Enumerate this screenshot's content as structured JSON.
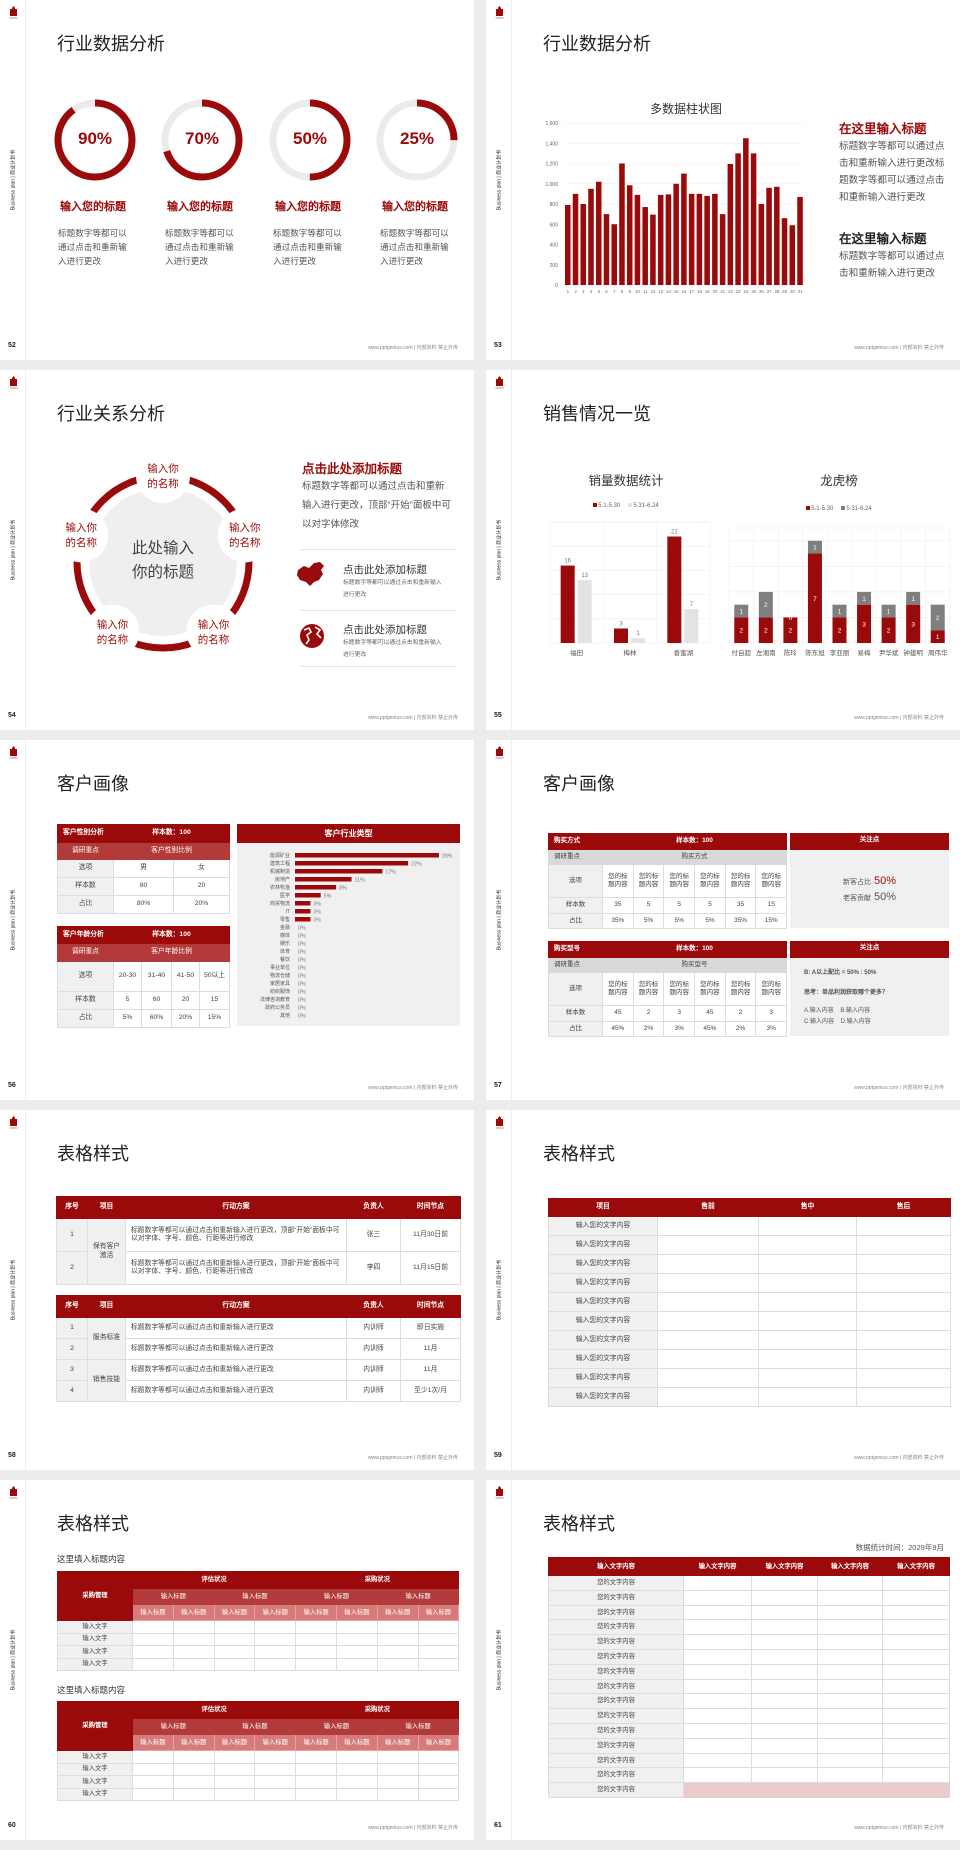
{
  "common": {
    "sidebar": "Business plan | 商业计划书",
    "footer": "www.pptgenius.com | 内部资料 禁止外传",
    "logo_icon": "red-building-logo"
  },
  "colors": {
    "accent": "#9b0a0a",
    "accent_mid": "#b33a3a",
    "accent_light": "#d67a7a",
    "gray_bar": "#e3e3e3",
    "dark_gray_bar": "#7f7f7f",
    "panel": "#f0f0f0"
  },
  "s52": {
    "page": "52",
    "title": "行业数据分析",
    "items": [
      {
        "percent": 90,
        "label": "90%",
        "heading": "输入您的标题",
        "text": "标题数字等都可以通过点击和重新输入进行更改"
      },
      {
        "percent": 70,
        "label": "70%",
        "heading": "输入您的标题",
        "text": "标题数字等都可以通过点击和重新输入进行更改"
      },
      {
        "percent": 50,
        "label": "50%",
        "heading": "输入您的标题",
        "text": "标题数字等都可以通过点击和重新输入进行更改"
      },
      {
        "percent": 25,
        "label": "25%",
        "heading": "输入您的标题",
        "text": "标题数字等都可以通过点击和重新输入进行更改"
      }
    ]
  },
  "s53": {
    "page": "53",
    "title": "行业数据分析",
    "blocks": [
      {
        "heading": "在这里输入标题",
        "text": "标题数字等都可以通过点击和重新输入进行更改标题数字等都可以通过点击和重新输入进行更改"
      },
      {
        "heading": "在这里输入标题",
        "text": "标题数字等都可以通过点击和重新输入进行更改"
      }
    ]
  },
  "s54": {
    "page": "54",
    "title": "行业关系分析",
    "center": "此处输入你的标题",
    "nodes": [
      "输入你的名称",
      "输入你的名称",
      "输入你的名称",
      "输入你的名称",
      "输入你的名称"
    ],
    "heading": "点击此处添加标题",
    "text": "标题数字等都可以通过点击和重新输入进行更改，顶部“开始”面板中可以对字体修改",
    "items": [
      {
        "icon": "china-map-icon",
        "title": "点击此处添加标题",
        "text": "标题数字等都可以通过点击和重新输入进行更改"
      },
      {
        "icon": "globe-icon",
        "title": "点击此处添加标题",
        "text": "标题数字等都可以通过点击和重新输入进行更改"
      }
    ]
  },
  "s55": {
    "page": "55",
    "title": "销售情况一览"
  },
  "s56": {
    "page": "56",
    "title": "客户画像",
    "t1": {
      "rows": [
        [
          "客户性别分析",
          "样本数：100"
        ],
        [
          "调研重点",
          "客户性别比例"
        ],
        [
          "选项",
          "男",
          "女"
        ],
        [
          "样本数",
          "80",
          "20"
        ],
        [
          "占比",
          "80%",
          "20%"
        ]
      ]
    },
    "t2": {
      "rows": [
        [
          "客户年龄分析",
          "样本数：100"
        ],
        [
          "调研重点",
          "客户年龄比例"
        ],
        [
          "选项",
          "20-30",
          "31-40",
          "41-50",
          "50以上"
        ],
        [
          "样本数",
          "5",
          "60",
          "20",
          "15"
        ],
        [
          "占比",
          "5%",
          "60%",
          "20%",
          "15%"
        ]
      ]
    },
    "panel_title": "客户行业类型"
  },
  "s57": {
    "page": "57",
    "title": "客户画像",
    "t1": {
      "rows": [
        [
          "购买方式",
          "样本数：100"
        ],
        [
          "调研重点",
          "购买方式"
        ],
        [
          "选项",
          "您的标题内容",
          "您的标题内容",
          "您的标题内容",
          "您的标题内容",
          "您的标题内容",
          "您的标题内容"
        ],
        [
          "样本数",
          "35",
          "5",
          "5",
          "5",
          "35",
          "15"
        ],
        [
          "占比",
          "35%",
          "5%",
          "5%",
          "5%",
          "35%",
          "15%"
        ]
      ]
    },
    "t2": {
      "rows": [
        [
          "购买型号",
          "样本数：100"
        ],
        [
          "调研重点",
          "购买型号"
        ],
        [
          "选项",
          "您的标题内容",
          "您的标题内容",
          "您的标题内容",
          "您的标题内容",
          "您的标题内容",
          "您的标题内容"
        ],
        [
          "样本数",
          "45",
          "2",
          "3",
          "45",
          "2",
          "3"
        ],
        [
          "占比",
          "45%",
          "2%",
          "3%",
          "45%",
          "2%",
          "3%"
        ]
      ]
    },
    "p1": {
      "title": "关注点",
      "l1": "新客占比",
      "v1": "50%",
      "l2": "老客贡献",
      "v2": "50%"
    },
    "p2": {
      "title": "关注点",
      "lines": [
        "B: A以上配比 = 50% : 50%",
        "思考：单品利润获取哪个更多？",
        "A.输入内容    B.输入内容",
        "C.输入内容    D.输入内容"
      ]
    }
  },
  "s58": {
    "page": "58",
    "title": "表格样式",
    "t1": {
      "rows": [
        [
          "序号",
          "项目",
          "行动方案",
          "负责人",
          "时间节点"
        ],
        [
          "1",
          "保有客户激活",
          "标题数字等都可以通过点击和重新输入进行更改，顶部“开始”面板中可以对字体、字号、颜色、行距等进行修改",
          "张三",
          "11月30日前"
        ],
        [
          "2",
          "标题数字等都可以通过点击和重新输入进行更改，顶部“开始”面板中可以对字体、字号、颜色、行距等进行修改",
          "李四",
          "11月15日前"
        ]
      ]
    },
    "t2": {
      "rows": [
        [
          "序号",
          "项目",
          "行动方案",
          "负责人",
          "时间节点"
        ],
        [
          "1",
          "服务标准",
          "标题数字等都可以通过点击和重新输入进行更改",
          "内训师",
          "即日实施"
        ],
        [
          "2",
          "标题数字等都可以通过点击和重新输入进行更改",
          "内训师",
          "11月"
        ],
        [
          "3",
          "销售技能",
          "标题数字等都可以通过点击和重新输入进行更改",
          "内训师",
          "11月"
        ],
        [
          "4",
          "标题数字等都可以通过点击和重新输入进行更改",
          "内训师",
          "至少1次/月"
        ]
      ]
    }
  },
  "s59": {
    "page": "59",
    "title": "表格样式",
    "t1": {
      "rows": [
        [
          "项目",
          "售前",
          "售中",
          "售后"
        ],
        [
          "输入您的文字内容"
        ],
        [
          "输入您的文字内容"
        ],
        [
          "输入您的文字内容"
        ],
        [
          "输入您的文字内容"
        ],
        [
          "输入您的文字内容"
        ],
        [
          "输入您的文字内容"
        ],
        [
          "输入您的文字内容"
        ],
        [
          "输入您的文字内容"
        ],
        [
          "输入您的文字内容"
        ],
        [
          "输入您的文字内容"
        ]
      ]
    }
  },
  "s60": {
    "page": "60",
    "title": "表格样式",
    "sub1": "这里填入标题内容",
    "sub2": "这里填入标题内容",
    "t1": {
      "rows": [
        [
          "采购管理",
          "评估状况",
          "采购状况"
        ],
        [
          "输入标题",
          "输入标题",
          "输入标题",
          "输入标题"
        ],
        [
          "输入标题",
          "输入标题",
          "输入标题",
          "输入标题",
          "输入标题",
          "输入标题",
          "输入标题",
          "输入标题"
        ],
        [
          "输入文字"
        ],
        [
          "输入文字"
        ],
        [
          "输入文字"
        ],
        [
          "输入文字"
        ]
      ]
    },
    "t2": {
      "rows": [
        [
          "采购管理",
          "评估状况",
          "采购状况"
        ],
        [
          "输入标题",
          "输入标题",
          "输入标题",
          "输入标题"
        ],
        [
          "输入标题",
          "输入标题",
          "输入标题",
          "输入标题",
          "输入标题",
          "输入标题",
          "输入标题",
          "输入标题"
        ],
        [
          "输入文字"
        ],
        [
          "输入文字"
        ],
        [
          "输入文字"
        ],
        [
          "输入文字"
        ]
      ]
    }
  },
  "s61": {
    "page": "61",
    "title": "表格样式",
    "date_note": "数据统计时间：2029年9月",
    "t1": {
      "rows": [
        [
          "输入文字内容",
          "输入文字内容",
          "输入文字内容",
          "输入文字内容",
          "输入文字内容"
        ],
        [
          "您的文字内容"
        ],
        [
          "您的文字内容"
        ],
        [
          "您的文字内容"
        ],
        [
          "您的文字内容"
        ],
        [
          "您的文字内容"
        ],
        [
          "您的文字内容"
        ],
        [
          "您的文字内容"
        ],
        [
          "您的文字内容"
        ],
        [
          "您的文字内容"
        ],
        [
          "您的文字内容"
        ],
        [
          "您的文字内容"
        ],
        [
          "您的文字内容"
        ],
        [
          "您的文字内容"
        ],
        [
          "您的文字内容"
        ],
        [
          "您的文字内容"
        ]
      ]
    }
  },
  "chart_data": [
    {
      "type": "bar",
      "title": "多数据柱状图",
      "categories": [
        "1",
        "2",
        "3",
        "4",
        "5",
        "6",
        "7",
        "8",
        "9",
        "10",
        "11",
        "12",
        "13",
        "14",
        "15",
        "16",
        "17",
        "18",
        "19",
        "20",
        "21",
        "22",
        "23",
        "24",
        "25",
        "26",
        "27",
        "28",
        "29",
        "30",
        "31"
      ],
      "values": [
        790,
        900,
        800,
        950,
        1020,
        700,
        600,
        1200,
        985,
        890,
        770,
        695,
        890,
        895,
        1000,
        1100,
        900,
        900,
        880,
        900,
        700,
        1195,
        1300,
        1450,
        1300,
        800,
        960,
        970,
        660,
        590,
        870
      ],
      "ylim": [
        0,
        1600
      ],
      "yticks": [
        0,
        200,
        400,
        600,
        800,
        1000,
        1200,
        1400,
        1600
      ],
      "grid": true,
      "color": "#9b0a0a"
    },
    {
      "type": "bar",
      "title": "销量数据统计",
      "categories": [
        "福田",
        "梅林",
        "香蜜湖"
      ],
      "series": [
        {
          "name": "5.1-5.30",
          "values": [
            16,
            3,
            22
          ],
          "color": "#9b0a0a"
        },
        {
          "name": "5.31-6.24",
          "values": [
            13,
            1,
            7
          ],
          "color": "#e3e3e3"
        }
      ],
      "ylim": [
        0,
        25
      ],
      "legend": "top",
      "grid": true
    },
    {
      "type": "bar",
      "stacked": true,
      "title": "龙虎榜",
      "categories": [
        "付自超",
        "左湘南",
        "陈玲",
        "陈东旭",
        "李亚丽",
        "易梅",
        "尹华斌",
        "钟建明",
        "周伟华"
      ],
      "series": [
        {
          "name": "5.1-5.30",
          "values": [
            2,
            2,
            2,
            7,
            2,
            3,
            2,
            3,
            1
          ],
          "color": "#9b0a0a"
        },
        {
          "name": "5.31-6.24",
          "values": [
            1,
            2,
            0,
            1,
            1,
            1,
            1,
            1,
            2
          ],
          "color": "#7f7f7f"
        }
      ],
      "ylim": [
        0,
        9
      ],
      "legend": "top",
      "grid": true
    },
    {
      "type": "bar",
      "orientation": "horizontal",
      "title": "客户行业类型",
      "categories": [
        "能源矿业",
        "建筑工程",
        "机械制造",
        "房地产",
        "农林牧渔",
        "医学",
        "商贸物流",
        "IT",
        "零售",
        "金融",
        "媒体",
        "娱乐",
        "体育",
        "餐饮",
        "事业单位",
        "物流仓储",
        "家居家具",
        "纺织服饰",
        "法律咨询教育",
        "政府公务员",
        "其他"
      ],
      "values": [
        28,
        22,
        17,
        11,
        8,
        5,
        3,
        3,
        3,
        0,
        0,
        0,
        0,
        0,
        0,
        0,
        0,
        0,
        0,
        0,
        0
      ],
      "unit": "%",
      "color": "#9b0a0a"
    }
  ]
}
